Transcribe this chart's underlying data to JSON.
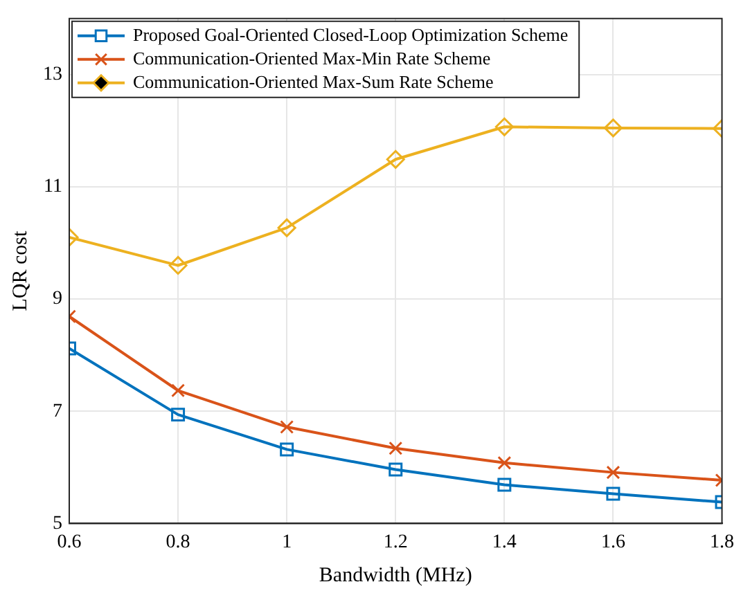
{
  "chart_data": {
    "type": "line",
    "xlabel": "Bandwidth (MHz)",
    "ylabel": "LQR cost",
    "x": [
      0.6,
      0.8,
      1.0,
      1.2,
      1.4,
      1.6,
      1.8
    ],
    "xlim": [
      0.6,
      1.8
    ],
    "xticks": [
      0.6,
      0.8,
      1,
      1.2,
      1.4,
      1.6,
      1.8
    ],
    "ylim": [
      5,
      14
    ],
    "yticks": [
      5,
      7,
      9,
      11,
      13
    ],
    "grid": true,
    "legend": "top left",
    "line_style": "solid",
    "series": [
      {
        "name": "Proposed Goal-Oriented Closed-Loop Optimization Scheme",
        "color": "#0072bd",
        "marker": "square",
        "values": [
          8.12,
          6.94,
          6.32,
          5.96,
          5.69,
          5.53,
          5.38
        ]
      },
      {
        "name": "Communication-Oriented Max-Min Rate Scheme",
        "color": "#d95319",
        "marker": "cross",
        "values": [
          8.69,
          7.37,
          6.72,
          6.34,
          6.08,
          5.91,
          5.77
        ]
      },
      {
        "name": "Communication-Oriented Max-Sum Rate Scheme",
        "color": "#edb120",
        "marker": "diamond",
        "values": [
          10.1,
          9.6,
          10.27,
          11.49,
          12.07,
          12.05,
          12.04
        ]
      }
    ]
  }
}
